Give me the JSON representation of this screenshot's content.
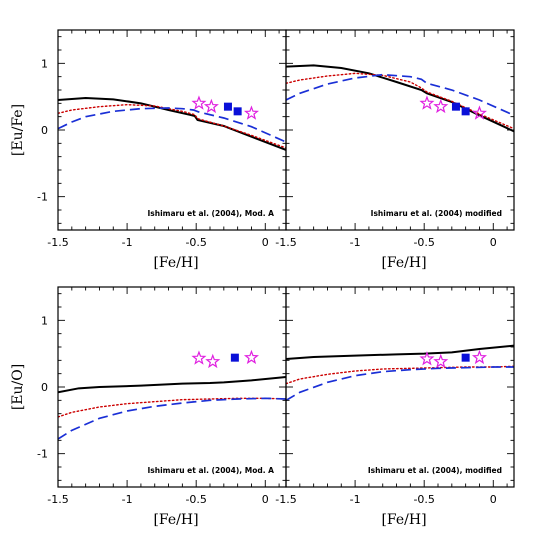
{
  "colors": {
    "solid": "#000000",
    "dotted": "#cc0000",
    "dashed": "#1a2fd6",
    "stars": "#e020e0",
    "squares": "#0a10d8"
  },
  "x_tick_labels": [
    "-1.5",
    "-1",
    "-0.5",
    "0"
  ],
  "chart_data": [
    {
      "type": "line",
      "panel": "top-left",
      "title": "",
      "xlabel": "[Fe/H]",
      "ylabel": "[Eu/Fe]",
      "annotation": "Ishimaru et al. (2004), Mod. A",
      "xlim": [
        -1.5,
        0.15
      ],
      "ylim": [
        -1.5,
        1.5
      ],
      "yticks": [
        "-1",
        "0",
        "1"
      ],
      "grid": false,
      "series": [
        {
          "style": "solid",
          "points": [
            [
              -1.5,
              0.45
            ],
            [
              -1.3,
              0.48
            ],
            [
              -1.1,
              0.46
            ],
            [
              -0.9,
              0.4
            ],
            [
              -0.7,
              0.3
            ],
            [
              -0.55,
              0.23
            ],
            [
              -0.51,
              0.21
            ],
            [
              -0.49,
              0.15
            ],
            [
              -0.3,
              0.06
            ],
            [
              -0.1,
              -0.1
            ],
            [
              0.15,
              -0.3
            ]
          ]
        },
        {
          "style": "dotted",
          "points": [
            [
              -1.5,
              0.25
            ],
            [
              -1.4,
              0.3
            ],
            [
              -1.2,
              0.35
            ],
            [
              -1.0,
              0.38
            ],
            [
              -0.8,
              0.36
            ],
            [
              -0.6,
              0.28
            ],
            [
              -0.51,
              0.23
            ],
            [
              -0.49,
              0.17
            ],
            [
              -0.3,
              0.06
            ],
            [
              -0.1,
              -0.08
            ],
            [
              0.15,
              -0.27
            ]
          ]
        },
        {
          "style": "dashed",
          "points": [
            [
              -1.5,
              0.02
            ],
            [
              -1.4,
              0.12
            ],
            [
              -1.3,
              0.2
            ],
            [
              -1.1,
              0.28
            ],
            [
              -0.9,
              0.32
            ],
            [
              -0.7,
              0.33
            ],
            [
              -0.6,
              0.32
            ],
            [
              -0.52,
              0.3
            ],
            [
              -0.48,
              0.27
            ],
            [
              -0.3,
              0.18
            ],
            [
              -0.1,
              0.05
            ],
            [
              0.15,
              -0.18
            ]
          ]
        }
      ],
      "stars": [
        [
          -0.48,
          0.4
        ],
        [
          -0.39,
          0.35
        ],
        [
          -0.1,
          0.25
        ]
      ],
      "squares": [
        [
          -0.27,
          0.35
        ],
        [
          -0.2,
          0.28
        ]
      ]
    },
    {
      "type": "line",
      "panel": "top-right",
      "title": "",
      "xlabel": "[Fe/H]",
      "ylabel": "",
      "annotation": "Ishimaru et al. (2004) modified",
      "xlim": [
        -1.5,
        0.15
      ],
      "ylim": [
        -1.5,
        1.5
      ],
      "yticks": [
        "-1",
        "0",
        "1"
      ],
      "grid": false,
      "series": [
        {
          "style": "solid",
          "points": [
            [
              -1.5,
              0.95
            ],
            [
              -1.3,
              0.97
            ],
            [
              -1.1,
              0.93
            ],
            [
              -0.9,
              0.85
            ],
            [
              -0.7,
              0.72
            ],
            [
              -0.52,
              0.6
            ],
            [
              -0.48,
              0.55
            ],
            [
              -0.3,
              0.42
            ],
            [
              -0.1,
              0.22
            ],
            [
              0.15,
              -0.02
            ]
          ]
        },
        {
          "style": "dotted",
          "points": [
            [
              -1.5,
              0.7
            ],
            [
              -1.4,
              0.75
            ],
            [
              -1.2,
              0.81
            ],
            [
              -1.0,
              0.85
            ],
            [
              -0.8,
              0.82
            ],
            [
              -0.6,
              0.72
            ],
            [
              -0.52,
              0.63
            ],
            [
              -0.48,
              0.57
            ],
            [
              -0.3,
              0.43
            ],
            [
              -0.1,
              0.24
            ],
            [
              0.15,
              0.02
            ]
          ]
        },
        {
          "style": "dashed",
          "points": [
            [
              -1.5,
              0.45
            ],
            [
              -1.4,
              0.55
            ],
            [
              -1.2,
              0.69
            ],
            [
              -1.0,
              0.78
            ],
            [
              -0.8,
              0.83
            ],
            [
              -0.6,
              0.8
            ],
            [
              -0.52,
              0.76
            ],
            [
              -0.48,
              0.7
            ],
            [
              -0.3,
              0.6
            ],
            [
              -0.1,
              0.45
            ],
            [
              0.15,
              0.22
            ]
          ]
        }
      ],
      "stars": [
        [
          -0.48,
          0.4
        ],
        [
          -0.38,
          0.35
        ],
        [
          -0.1,
          0.25
        ]
      ],
      "squares": [
        [
          -0.27,
          0.35
        ],
        [
          -0.2,
          0.28
        ]
      ]
    },
    {
      "type": "line",
      "panel": "bottom-left",
      "title": "",
      "xlabel": "[Fe/H]",
      "ylabel": "[Eu/O]",
      "annotation": "Ishimaru et al. (2004), Mod. A",
      "xlim": [
        -1.5,
        0.15
      ],
      "ylim": [
        -1.5,
        1.5
      ],
      "yticks": [
        "-1",
        "0",
        "1"
      ],
      "grid": false,
      "series": [
        {
          "style": "solid",
          "points": [
            [
              -1.5,
              -0.08
            ],
            [
              -1.35,
              -0.02
            ],
            [
              -1.2,
              0.0
            ],
            [
              -0.9,
              0.02
            ],
            [
              -0.6,
              0.05
            ],
            [
              -0.4,
              0.06
            ],
            [
              -0.3,
              0.07
            ],
            [
              -0.1,
              0.1
            ],
            [
              0.15,
              0.15
            ]
          ]
        },
        {
          "style": "dotted",
          "points": [
            [
              -1.5,
              -0.45
            ],
            [
              -1.4,
              -0.38
            ],
            [
              -1.2,
              -0.3
            ],
            [
              -1.0,
              -0.25
            ],
            [
              -0.8,
              -0.22
            ],
            [
              -0.6,
              -0.19
            ],
            [
              -0.4,
              -0.18
            ],
            [
              -0.2,
              -0.17
            ],
            [
              0.0,
              -0.17
            ],
            [
              0.15,
              -0.18
            ]
          ]
        },
        {
          "style": "dashed",
          "points": [
            [
              -1.5,
              -0.78
            ],
            [
              -1.4,
              -0.65
            ],
            [
              -1.2,
              -0.47
            ],
            [
              -1.0,
              -0.36
            ],
            [
              -0.8,
              -0.29
            ],
            [
              -0.6,
              -0.24
            ],
            [
              -0.4,
              -0.2
            ],
            [
              -0.2,
              -0.18
            ],
            [
              0.0,
              -0.17
            ],
            [
              0.15,
              -0.18
            ]
          ]
        }
      ],
      "stars": [
        [
          -0.48,
          0.43
        ],
        [
          -0.38,
          0.38
        ],
        [
          -0.1,
          0.44
        ]
      ],
      "squares": [
        [
          -0.22,
          0.44
        ]
      ]
    },
    {
      "type": "line",
      "panel": "bottom-right",
      "title": "",
      "xlabel": "[Fe/H]",
      "ylabel": "",
      "annotation": "Ishimaru et al. (2004), modified",
      "xlim": [
        -1.5,
        0.15
      ],
      "ylim": [
        -1.5,
        1.5
      ],
      "yticks": [
        "-1",
        "0",
        "1"
      ],
      "grid": false,
      "series": [
        {
          "style": "solid",
          "points": [
            [
              -1.5,
              0.42
            ],
            [
              -1.3,
              0.45
            ],
            [
              -1.0,
              0.47
            ],
            [
              -0.7,
              0.49
            ],
            [
              -0.5,
              0.5
            ],
            [
              -0.3,
              0.52
            ],
            [
              -0.1,
              0.57
            ],
            [
              0.15,
              0.62
            ]
          ]
        },
        {
          "style": "dotted",
          "points": [
            [
              -1.5,
              0.05
            ],
            [
              -1.4,
              0.12
            ],
            [
              -1.2,
              0.19
            ],
            [
              -1.0,
              0.24
            ],
            [
              -0.8,
              0.27
            ],
            [
              -0.6,
              0.28
            ],
            [
              -0.4,
              0.29
            ],
            [
              -0.2,
              0.3
            ],
            [
              0.0,
              0.3
            ],
            [
              0.15,
              0.31
            ]
          ]
        },
        {
          "style": "dashed",
          "points": [
            [
              -1.5,
              -0.2
            ],
            [
              -1.4,
              -0.08
            ],
            [
              -1.2,
              0.07
            ],
            [
              -1.0,
              0.17
            ],
            [
              -0.8,
              0.23
            ],
            [
              -0.6,
              0.26
            ],
            [
              -0.4,
              0.28
            ],
            [
              -0.2,
              0.29
            ],
            [
              0.0,
              0.3
            ],
            [
              0.15,
              0.3
            ]
          ]
        }
      ],
      "stars": [
        [
          -0.48,
          0.42
        ],
        [
          -0.38,
          0.38
        ],
        [
          -0.1,
          0.44
        ]
      ],
      "squares": [
        [
          -0.2,
          0.44
        ]
      ]
    }
  ]
}
